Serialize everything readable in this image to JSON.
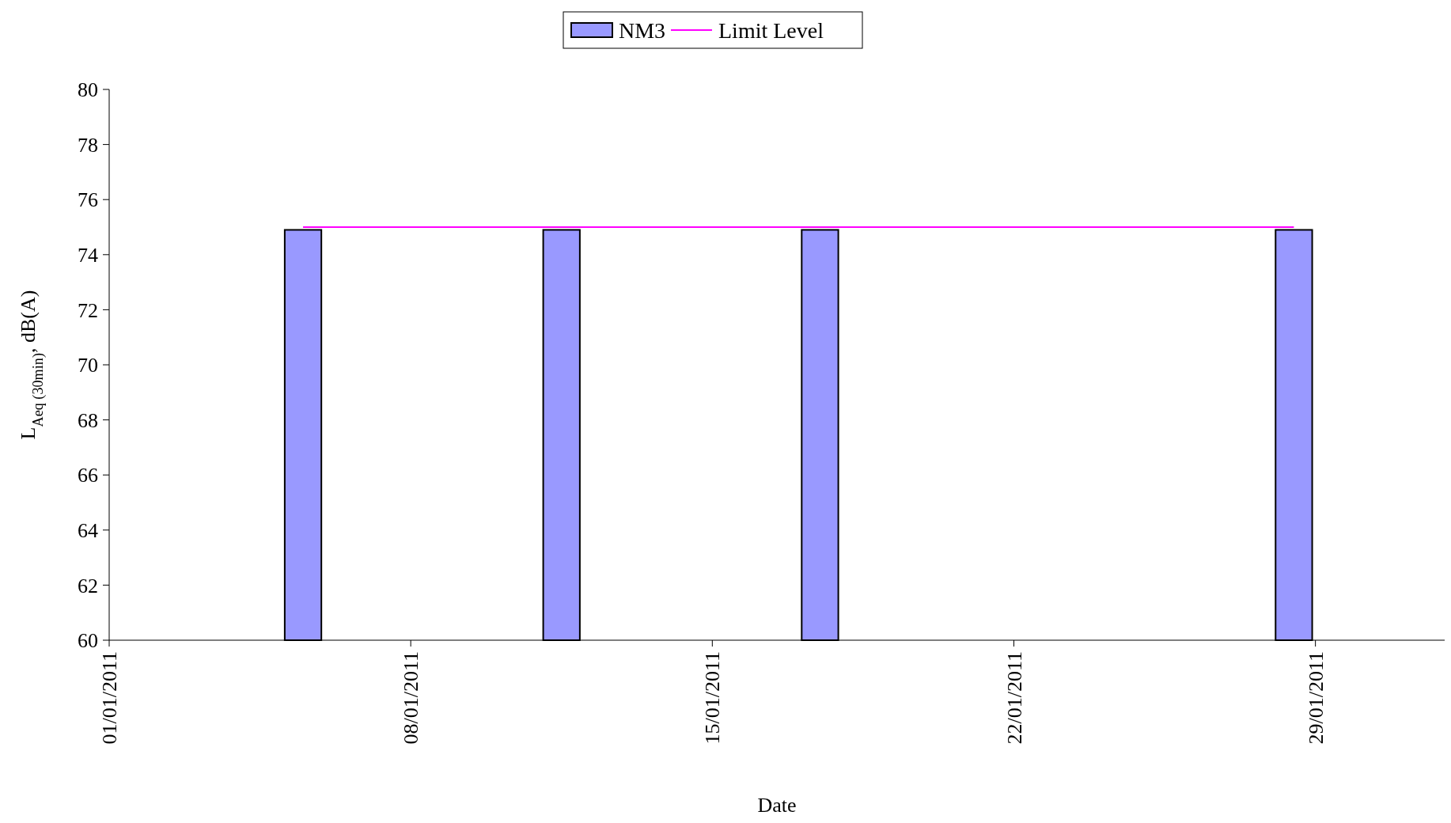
{
  "chart_data": {
    "type": "bar",
    "xlabel": "Date",
    "ylabel": "L$_{Aeq (30min)}$, dB(A)",
    "xlim": [
      "2011-01-01",
      "2011-02-01"
    ],
    "xticks": [
      {
        "value": "2011-01-01",
        "label": "01/01/2011"
      },
      {
        "value": "2011-01-08",
        "label": "08/01/2011"
      },
      {
        "value": "2011-01-15",
        "label": "15/01/2011"
      },
      {
        "value": "2011-01-22",
        "label": "22/01/2011"
      },
      {
        "value": "2011-01-29",
        "label": "29/01/2011"
      }
    ],
    "ylim": [
      60,
      80
    ],
    "yticks": [
      60,
      62,
      64,
      66,
      68,
      70,
      72,
      74,
      76,
      78,
      80
    ],
    "series": [
      {
        "name": "NM3",
        "color": "#9999ff",
        "x": [
          "2011-01-05T12:00",
          "2011-01-11T12:00",
          "2011-01-17T12:00",
          "2011-01-28T12:00"
        ],
        "values": [
          74.9,
          74.9,
          74.9,
          74.9
        ]
      },
      {
        "name": "Limit Level",
        "type": "line",
        "color": "#ff00ff",
        "x": [
          "2011-01-05T12:00",
          "2011-01-28T12:00"
        ],
        "values": [
          75,
          75
        ]
      }
    ],
    "legend": "top",
    "grid": false
  }
}
